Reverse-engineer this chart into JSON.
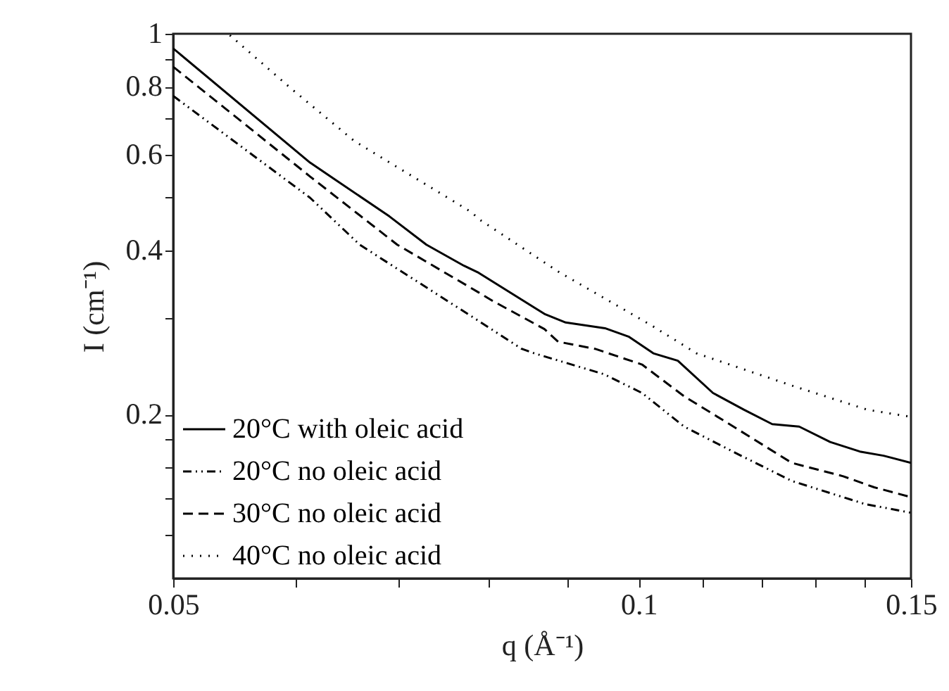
{
  "chart_data": {
    "type": "line",
    "xlabel": "q (Å⁻¹)",
    "ylabel": "I (cm⁻¹)",
    "log": "xy",
    "xlim": [
      0.05,
      0.15
    ],
    "ylim": [
      0.1,
      1
    ],
    "xticks": [
      0.05,
      {
        "value": 0.06,
        "label": null
      },
      {
        "value": 0.07,
        "label": null
      },
      {
        "value": 0.08,
        "label": null
      },
      {
        "value": 0.09,
        "label": null
      },
      0.1,
      {
        "value": 0.11,
        "label": null
      },
      {
        "value": 0.12,
        "label": null
      },
      {
        "value": 0.13,
        "label": null
      },
      {
        "value": 0.14,
        "label": null
      },
      0.15
    ],
    "yticks": [
      {
        "value": 0.12,
        "label": null
      },
      {
        "value": 0.14,
        "label": null
      },
      {
        "value": 0.16,
        "label": null
      },
      {
        "value": 0.18,
        "label": null
      },
      0.2,
      {
        "value": 0.3,
        "label": null
      },
      0.4,
      {
        "value": 0.5,
        "label": null
      },
      0.6,
      {
        "value": 0.7,
        "label": null
      },
      0.8,
      {
        "value": 0.9,
        "label": null
      },
      1
    ],
    "grid": false,
    "legend": "bottom left",
    "marker": "none",
    "series": [
      {
        "name": "20°C with oleic acid",
        "color": "#000000",
        "line_style": "solid",
        "x": [
          0.05,
          0.0613,
          0.069,
          0.0729,
          0.0771,
          0.0788,
          0.0869,
          0.0897,
          0.0951,
          0.0985,
          0.1022,
          0.106,
          0.1117,
          0.117,
          0.122,
          0.127,
          0.133,
          0.139,
          0.144,
          0.15
        ],
        "values": [
          0.94,
          0.58,
          0.462,
          0.41,
          0.375,
          0.364,
          0.306,
          0.295,
          0.288,
          0.278,
          0.259,
          0.251,
          0.219,
          0.204,
          0.192,
          0.19,
          0.178,
          0.171,
          0.168,
          0.163
        ]
      },
      {
        "name": "20°C no oleic acid",
        "color": "#000000",
        "line_style": "dashdotdot",
        "x": [
          0.05,
          0.0613,
          0.066,
          0.0788,
          0.084,
          0.0856,
          0.095,
          0.1005,
          0.107,
          0.1155,
          0.1256,
          0.14,
          0.15
        ],
        "values": [
          0.769,
          0.5,
          0.41,
          0.297,
          0.264,
          0.259,
          0.237,
          0.219,
          0.19,
          0.17,
          0.151,
          0.137,
          0.132
        ]
      },
      {
        "name": "30°C no oleic acid",
        "color": "#000000",
        "line_style": "dashed",
        "x": [
          0.05,
          0.0613,
          0.0698,
          0.0788,
          0.0805,
          0.0869,
          0.0887,
          0.0937,
          0.1005,
          0.107,
          0.1155,
          0.1256,
          0.1356,
          0.142,
          0.15
        ],
        "values": [
          0.87,
          0.547,
          0.41,
          0.335,
          0.323,
          0.287,
          0.272,
          0.264,
          0.247,
          0.216,
          0.189,
          0.163,
          0.154,
          0.147,
          0.141
        ]
      },
      {
        "name": "40°C no oleic acid",
        "color": "#000000",
        "line_style": "dotted",
        "x": [
          0.0544,
          0.0597,
          0.0655,
          0.078,
          0.0788,
          0.0887,
          0.1018,
          0.109,
          0.1256,
          0.1406,
          0.15
        ],
        "values": [
          0.994,
          0.79,
          0.635,
          0.47,
          0.457,
          0.366,
          0.292,
          0.259,
          0.226,
          0.204,
          0.198
        ]
      }
    ]
  }
}
